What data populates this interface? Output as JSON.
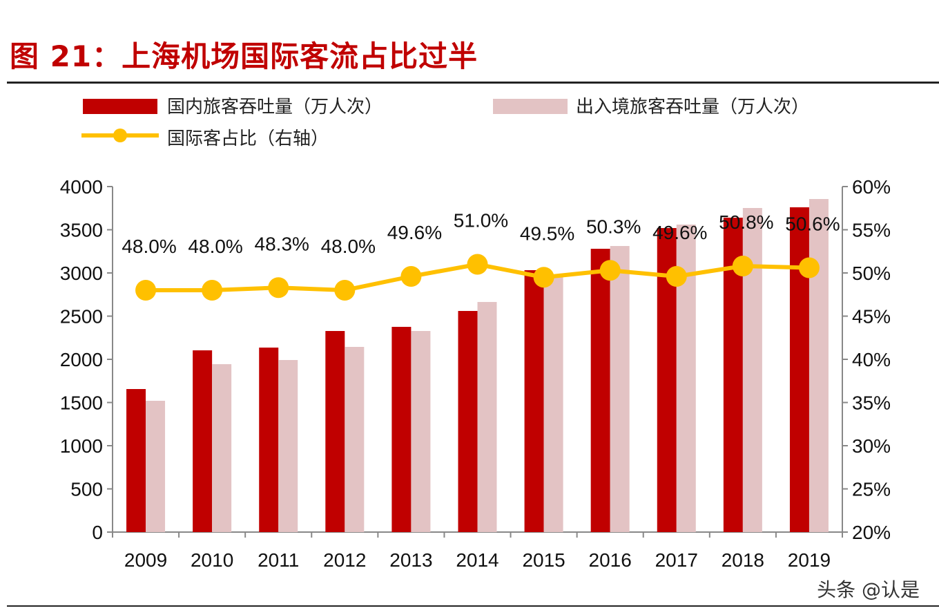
{
  "chart_data": {
    "type": "bar",
    "title": "图 21：上海机场国际客流占比过半",
    "categories": [
      "2009",
      "2010",
      "2011",
      "2012",
      "2013",
      "2014",
      "2015",
      "2016",
      "2017",
      "2018",
      "2019"
    ],
    "series": [
      {
        "name": "国内旅客吞吐量（万人次）",
        "type": "bar",
        "axis": "left",
        "color": "#c00000",
        "values": [
          1656,
          2104,
          2136,
          2328,
          2376,
          2560,
          3032,
          3280,
          3520,
          3640,
          3760
        ]
      },
      {
        "name": "出入境旅客吞吐量（万人次）",
        "type": "bar",
        "axis": "left",
        "color": "#e3c3c4",
        "values": [
          1520,
          1944,
          1992,
          2144,
          2328,
          2664,
          2952,
          3312,
          3560,
          3752,
          3856
        ]
      },
      {
        "name": "国际客占比（右轴）",
        "type": "line",
        "axis": "right",
        "color": "#ffc000",
        "values": [
          48.0,
          48.0,
          48.3,
          48.0,
          49.6,
          51.0,
          49.5,
          50.3,
          49.6,
          50.8,
          50.6
        ],
        "labels": [
          "48.0%",
          "48.0%",
          "48.3%",
          "48.0%",
          "49.6%",
          "51.0%",
          "49.5%",
          "50.3%",
          "49.6%",
          "50.8%",
          "50.6%"
        ]
      }
    ],
    "ylim": [
      0,
      4000
    ],
    "yticks": [
      "0",
      "500",
      "1000",
      "1500",
      "2000",
      "2500",
      "3000",
      "3500",
      "4000"
    ],
    "y2lim": [
      20,
      60
    ],
    "y2ticks": [
      "20%",
      "25%",
      "30%",
      "35%",
      "40%",
      "45%",
      "50%",
      "55%",
      "60%"
    ],
    "legend_position": "top",
    "grid": false
  },
  "watermark": "头条 @认是"
}
